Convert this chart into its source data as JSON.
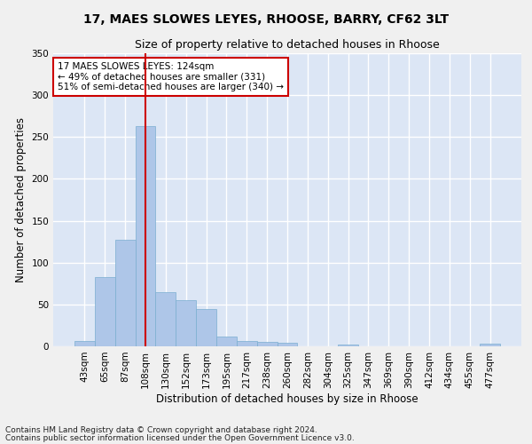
{
  "title1": "17, MAES SLOWES LEYES, RHOOSE, BARRY, CF62 3LT",
  "title2": "Size of property relative to detached houses in Rhoose",
  "xlabel": "Distribution of detached houses by size in Rhoose",
  "ylabel": "Number of detached properties",
  "categories": [
    "43sqm",
    "65sqm",
    "87sqm",
    "108sqm",
    "130sqm",
    "152sqm",
    "173sqm",
    "195sqm",
    "217sqm",
    "238sqm",
    "260sqm",
    "282sqm",
    "304sqm",
    "325sqm",
    "347sqm",
    "369sqm",
    "390sqm",
    "412sqm",
    "434sqm",
    "455sqm",
    "477sqm"
  ],
  "values": [
    6,
    83,
    127,
    263,
    65,
    55,
    45,
    12,
    6,
    5,
    4,
    0,
    0,
    2,
    0,
    0,
    0,
    0,
    0,
    0,
    3
  ],
  "bar_color": "#aec6e8",
  "bar_edge_color": "#7aaed0",
  "vline_x_index": 3,
  "vline_color": "#cc0000",
  "annotation_text": "17 MAES SLOWES LEYES: 124sqm\n← 49% of detached houses are smaller (331)\n51% of semi-detached houses are larger (340) →",
  "annotation_box_color": "#ffffff",
  "annotation_box_edge_color": "#cc0000",
  "ylim": [
    0,
    350
  ],
  "yticks": [
    0,
    50,
    100,
    150,
    200,
    250,
    300,
    350
  ],
  "footnote1": "Contains HM Land Registry data © Crown copyright and database right 2024.",
  "footnote2": "Contains public sector information licensed under the Open Government Licence v3.0.",
  "fig_background_color": "#f0f0f0",
  "plot_background_color": "#dce6f5",
  "grid_color": "#ffffff",
  "title1_fontsize": 10,
  "title2_fontsize": 9,
  "axis_label_fontsize": 8.5,
  "tick_fontsize": 7.5,
  "annotation_fontsize": 7.5,
  "footnote_fontsize": 6.5
}
